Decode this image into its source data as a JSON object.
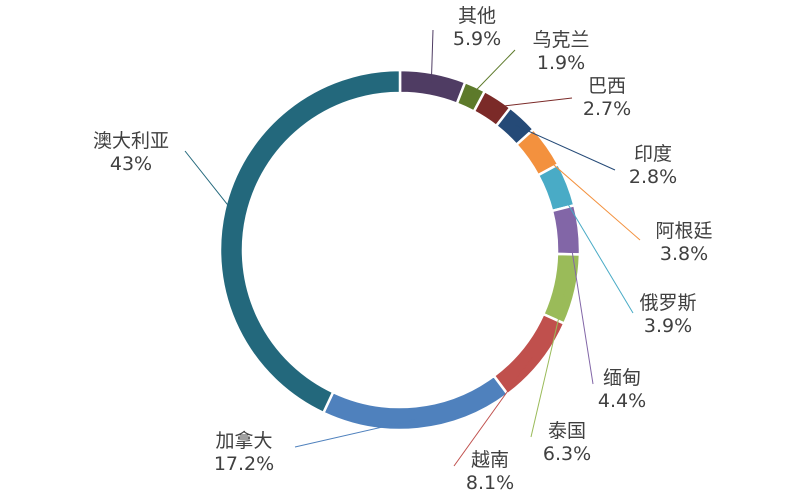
{
  "chart_data": {
    "type": "pie",
    "variant": "donut",
    "start_angle_deg": 0,
    "direction": "clockwise",
    "slices": [
      {
        "name": "其他",
        "value": 5.9,
        "label": "5.9%",
        "color": "#4f3c63"
      },
      {
        "name": "乌克兰",
        "value": 1.9,
        "label": "1.9%",
        "color": "#5d7a2b"
      },
      {
        "name": "巴西",
        "value": 2.7,
        "label": "2.7%",
        "color": "#7b2a28"
      },
      {
        "name": "印度",
        "value": 2.8,
        "label": "2.8%",
        "color": "#254a77"
      },
      {
        "name": "阿根廷",
        "value": 3.8,
        "label": "3.8%",
        "color": "#f3913e"
      },
      {
        "name": "俄罗斯",
        "value": 3.9,
        "label": "3.9%",
        "color": "#49abc6"
      },
      {
        "name": "缅甸",
        "value": 4.4,
        "label": "4.4%",
        "color": "#8266a7"
      },
      {
        "name": "泰国",
        "value": 6.3,
        "label": "6.3%",
        "color": "#9abb59"
      },
      {
        "name": "越南",
        "value": 8.1,
        "label": "8.1%",
        "color": "#c0504d"
      },
      {
        "name": "加拿大",
        "value": 17.2,
        "label": "17.2%",
        "color": "#4f81bd"
      },
      {
        "name": "澳大利亚",
        "value": 43,
        "label": "43%",
        "color": "#23687c"
      }
    ]
  }
}
